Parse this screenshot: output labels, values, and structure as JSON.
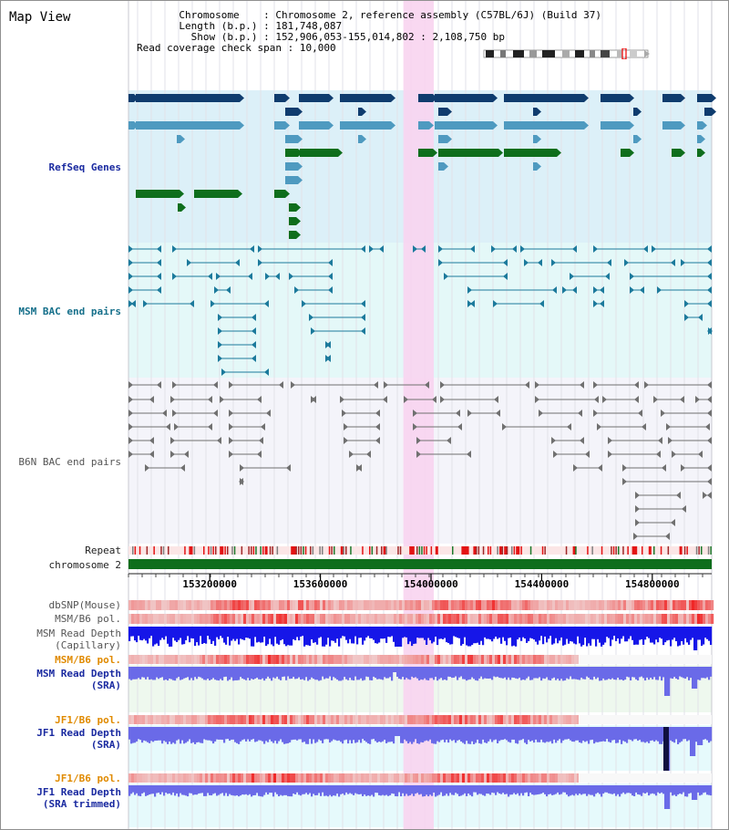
{
  "app": {
    "title": "Map View"
  },
  "info": {
    "chromosome_key": "Chromosome",
    "chromosome_value": "Chromosome 2, reference assembly (C57BL/6J) (Build 37)",
    "length_key": "Length (b.p.)",
    "length_value": "181,748,087",
    "show_key": "Show (b.p.)",
    "show_value": "152,906,053-155,014,802 : 2,108,750 bp",
    "coverage_key": "Read coverage check span",
    "coverage_value": "10,000"
  },
  "view": {
    "start": 152906053,
    "end": 155014802,
    "highlight_start": 153900000,
    "highlight_end": 154010000
  },
  "tracks": {
    "refseq": "RefSeq Genes",
    "msm_bac": "MSM BAC end pairs",
    "b6n_bac": "B6N BAC end pairs",
    "repeat": "Repeat",
    "chromosome": "chromosome 2",
    "dbsnp": "dbSNP(Mouse)",
    "msm_b6_pol": "MSM/B6 pol.",
    "msm_depth_cap": "MSM Read Depth\n(Capillary)",
    "msm_b6_pol2": "MSM/B6 pol.",
    "msm_depth_sra": "MSM Read Depth\n(SRA)",
    "jf1_b6_pol": "JF1/B6 pol.",
    "jf1_depth_sra": "JF1 Read Depth\n(SRA)",
    "jf1_b6_pol2": "JF1/B6 pol.",
    "jf1_depth_trim": "JF1 Read Depth\n(SRA trimmed)"
  },
  "axis": {
    "ticks": [
      153200000,
      153600000,
      154000000,
      154400000,
      154800000
    ],
    "tick_labels": [
      "153200000",
      "153600000",
      "154000000",
      "154400000",
      "154800000"
    ]
  },
  "colors": {
    "refseq_bg": "#dcf0f8",
    "bac_bg": "#e4f8f8",
    "b6n_bg": "#f4f4fa",
    "gene_dark": "#0f3c6e",
    "gene_mid": "#4e9ac0",
    "gene_green": "#0e6e1c",
    "highlight": "#f8d4f0",
    "chrom": "#0e6e1c",
    "depth_blue": "#1616e8",
    "depth_sra": "#6a6ae8",
    "pol_red": "#ee2020"
  }
}
